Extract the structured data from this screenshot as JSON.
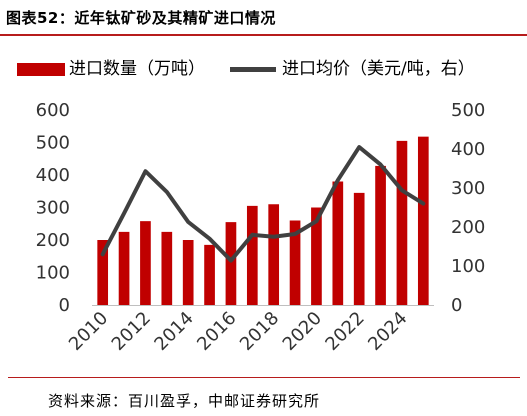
{
  "title": "图表52：近年钛矿砂及其精矿进口情况",
  "source": "资料来源：百川盈孚，中邮证券研究所",
  "colors": {
    "accent": "#b71c1c",
    "bar": "#c00000",
    "line": "#404040"
  },
  "chart_data": {
    "type": "bar+line",
    "x": [
      2010,
      2011,
      2012,
      2013,
      2014,
      2015,
      2016,
      2017,
      2018,
      2019,
      2020,
      2021,
      2022,
      2023,
      2024,
      2025
    ],
    "x_tick_labels": [
      "2010",
      "2012",
      "2014",
      "2016",
      "2018",
      "2020",
      "2022",
      "2024"
    ],
    "series": [
      {
        "name": "进口数量（万吨）",
        "type": "bar",
        "axis": "left",
        "values": [
          200,
          225,
          258,
          225,
          200,
          185,
          255,
          305,
          310,
          260,
          300,
          380,
          345,
          428,
          505,
          518
        ]
      },
      {
        "name": "进口均价（美元/吨，右）",
        "type": "line",
        "axis": "right",
        "values": [
          130,
          235,
          343,
          290,
          213,
          170,
          114,
          180,
          175,
          182,
          215,
          320,
          405,
          360,
          294,
          260
        ]
      }
    ],
    "y_left": {
      "lim": [
        0,
        600
      ],
      "ticks": [
        0,
        100,
        200,
        300,
        400,
        500,
        600
      ]
    },
    "y_right": {
      "lim": [
        0,
        500
      ],
      "ticks": [
        0,
        100,
        200,
        300,
        400,
        500
      ]
    },
    "grid": false,
    "legend_position": "top"
  }
}
